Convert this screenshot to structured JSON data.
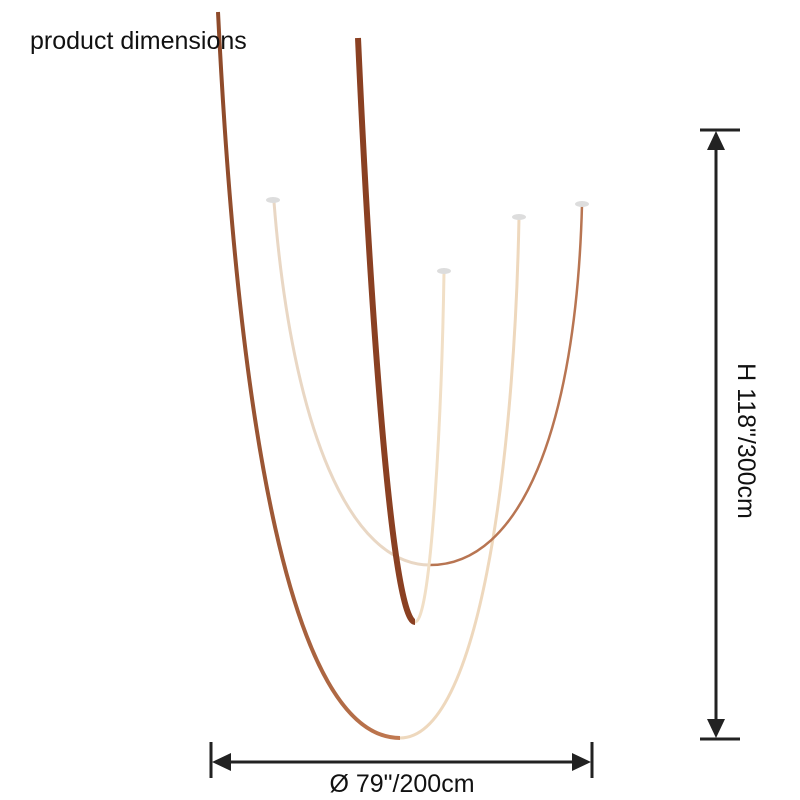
{
  "title": "product dimensions",
  "dimensions": {
    "height": "H 118\"/300cm",
    "diameter": "Ø 79\"/200cm"
  }
}
